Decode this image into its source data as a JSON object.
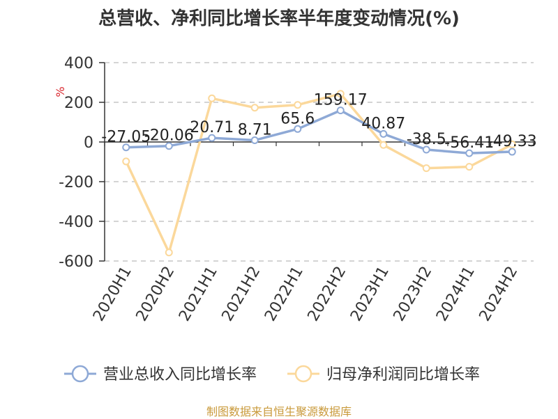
{
  "title": "总营收、净利同比增长率半年度变动情况(%)",
  "source_note": "制图数据来自恒生聚源数据库",
  "colors": {
    "revenue": "#8ea9d6",
    "profit": "#fbd89b",
    "grid": "#bbbbbb",
    "axis": "#333333",
    "ylabel": "#d9272e",
    "source": "#c99a3b"
  },
  "chart_data": {
    "type": "line",
    "title": "总营收、净利同比增长率半年度变动情况(%)",
    "ylabel": "%",
    "xlabel": "",
    "categories": [
      "2020H1",
      "2020H2",
      "2021H1",
      "2021H2",
      "2022H1",
      "2022H2",
      "2023H1",
      "2023H2",
      "2024H1",
      "2024H2"
    ],
    "ylim": [
      -600,
      400
    ],
    "yticks": [
      400,
      200,
      0,
      -200,
      -400,
      -600
    ],
    "grid": true,
    "legend_position": "bottom",
    "series": [
      {
        "name": "营业总收入同比增长率",
        "values": [
          -27.05,
          -20.06,
          20.71,
          8.71,
          65.6,
          159.17,
          40.87,
          -38.5,
          -56.41,
          -49.33
        ],
        "labels": [
          "-27.05",
          "-20.06",
          "20.71",
          "8.71",
          "65.6",
          "159.17",
          "40.87",
          "-38.5",
          "-56.41",
          "-49.33"
        ]
      },
      {
        "name": "归母净利润同比增长率",
        "values": [
          -98,
          -557,
          220,
          173,
          187,
          243,
          -15,
          -132,
          -125,
          -12
        ]
      }
    ]
  }
}
